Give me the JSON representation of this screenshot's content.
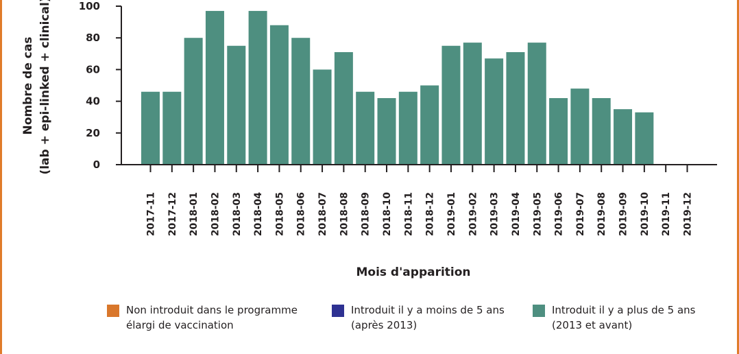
{
  "chart_data": {
    "type": "bar",
    "title": "",
    "xlabel": "Mois d'apparition",
    "ylabel_line1": "Nombre de cas",
    "ylabel_line2": "(lab + epi-linked + clinical)",
    "ylim": [
      0,
      100
    ],
    "yticks": [
      0,
      20,
      40,
      60,
      80,
      100
    ],
    "categories": [
      "2017-11",
      "2017-12",
      "2018-01",
      "2018-02",
      "2018-03",
      "2018-04",
      "2018-05",
      "2018-06",
      "2018-07",
      "2018-08",
      "2018-09",
      "2018-10",
      "2018-11",
      "2018-12",
      "2019-01",
      "2019-02",
      "2019-03",
      "2019-04",
      "2019-05",
      "2019-06",
      "2019-07",
      "2019-08",
      "2019-09",
      "2019-10",
      "2019-11",
      "2019-12"
    ],
    "series": [
      {
        "name": "Non introduit dans le programme élargi de vaccination",
        "color": "#d9772b",
        "values": [
          0,
          0,
          0,
          0,
          0,
          0,
          0,
          0,
          0,
          0,
          0,
          0,
          0,
          0,
          0,
          0,
          0,
          0,
          0,
          0,
          0,
          0,
          0,
          0,
          0,
          0
        ]
      },
      {
        "name": "Introduit il y a moins de 5 ans (après 2013)",
        "color": "#2e3192",
        "values": [
          0,
          0,
          0,
          0,
          0,
          0,
          0,
          0,
          0,
          0,
          0,
          0,
          0,
          0,
          0,
          0,
          0,
          0,
          0,
          0,
          0,
          0,
          0,
          0,
          0,
          0
        ]
      },
      {
        "name": "Introduit il y a plus de 5 ans (2013 et avant)",
        "color": "#4e8f80",
        "values": [
          46,
          46,
          80,
          97,
          75,
          97,
          88,
          80,
          60,
          71,
          46,
          42,
          46,
          50,
          75,
          77,
          67,
          71,
          77,
          42,
          48,
          42,
          35,
          33,
          0,
          0
        ]
      }
    ],
    "legend_position": "bottom",
    "grid": false
  },
  "legend": [
    {
      "line1": "Non introduit dans le programme",
      "line2": "élargi de vaccination",
      "color": "#d9772b"
    },
    {
      "line1": "Introduit il y a moins de 5 ans",
      "line2": "(après 2013)",
      "color": "#2e3192"
    },
    {
      "line1": "Introduit il y a plus de 5 ans",
      "line2": "(2013 et avant)",
      "color": "#4e8f80"
    }
  ]
}
